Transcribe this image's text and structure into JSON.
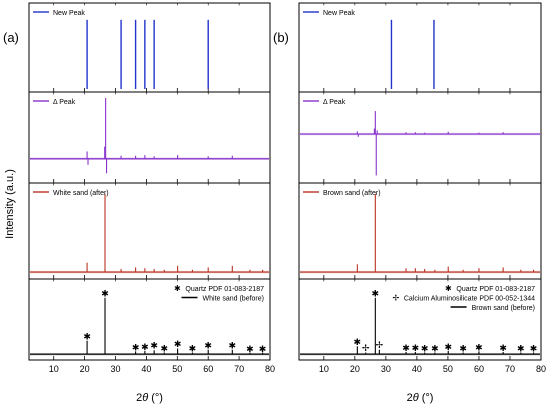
{
  "figure": {
    "ylabel": "Intensity (a.u.)"
  },
  "chart_data": [
    {
      "panel_label": "(a)",
      "type": "line",
      "xlabel_base": "2",
      "xlabel_theta": "θ",
      "xlabel_unit": " (°)",
      "xlim": [
        2,
        80
      ],
      "x_ticks": [
        10,
        20,
        30,
        40,
        50,
        60,
        70,
        80
      ],
      "grid": false,
      "legend_position": "top-left",
      "subplots": [
        {
          "legend": [
            {
              "label": "New Peak",
              "color": "#2233cc"
            }
          ],
          "series": [
            {
              "name": "New Peak",
              "color": "#2233cc",
              "style": "sticks",
              "x": [
                20.8,
                31.8,
                36.5,
                39.5,
                42.5,
                60.0
              ],
              "y": [
                1.0,
                1.0,
                1.0,
                1.0,
                1.0,
                1.0
              ]
            }
          ],
          "ylim": [
            0,
            1.2
          ],
          "baseline": 0
        },
        {
          "legend": [
            {
              "label": "Δ Peak",
              "color": "#8833cc"
            }
          ],
          "series": [
            {
              "name": "Δ Peak",
              "color": "#8833cc",
              "style": "spikes",
              "x": [
                20.8,
                21.1,
                26.5,
                26.8,
                27.1,
                31.8,
                36.5,
                39.5,
                42.5,
                50.1,
                60.0,
                67.8
              ],
              "y": [
                0.12,
                -0.1,
                0.2,
                1.0,
                -0.24,
                0.05,
                0.05,
                0.06,
                0.04,
                0.06,
                0.04,
                0.05
              ]
            }
          ],
          "ylim": [
            -0.35,
            1.05
          ],
          "baseline": 0
        },
        {
          "legend": [
            {
              "label": "White sand  (after)",
              "color": "#bb3322"
            }
          ],
          "series": [
            {
              "name": "White sand  (after)",
              "color": "#bb3322",
              "style": "spikes",
              "x": [
                20.8,
                26.6,
                31.8,
                36.5,
                39.5,
                42.5,
                45.8,
                50.1,
                54.9,
                60.0,
                67.8,
                73.5,
                77.6
              ],
              "y": [
                0.12,
                1.0,
                0.04,
                0.06,
                0.05,
                0.04,
                0.03,
                0.08,
                0.03,
                0.06,
                0.08,
                0.03,
                0.03
              ]
            }
          ],
          "ylim": [
            -0.05,
            1.1
          ],
          "baseline": 0
        },
        {
          "legend": [
            {
              "label": "Quartz PDF 01-083-2187",
              "marker": "✱"
            },
            {
              "label": "White sand  (before)",
              "color": "#000000"
            }
          ],
          "series": [
            {
              "name": "White sand  (before)",
              "color": "#000000",
              "style": "spikes",
              "x": [
                20.8,
                26.6,
                36.5,
                39.5,
                42.5,
                45.8,
                50.1,
                54.9,
                60.0,
                67.8,
                73.5,
                77.6
              ],
              "y": [
                0.24,
                1.0,
                0.05,
                0.06,
                0.07,
                0.03,
                0.1,
                0.03,
                0.08,
                0.08,
                0.03,
                0.03
              ]
            }
          ],
          "markers": [
            {
              "symbol": "✱",
              "x": [
                20.8,
                26.6,
                36.5,
                39.5,
                42.5,
                45.8,
                50.1,
                54.9,
                60.0,
                67.8,
                73.5,
                77.6
              ],
              "y": [
                0.31,
                1.08,
                0.12,
                0.13,
                0.15,
                0.1,
                0.18,
                0.1,
                0.15,
                0.15,
                0.09,
                0.09
              ]
            }
          ],
          "ylim": [
            -0.05,
            1.28
          ],
          "baseline": 0
        }
      ]
    },
    {
      "panel_label": "(b)",
      "type": "line",
      "xlabel_base": "2",
      "xlabel_theta": "θ",
      "xlabel_unit": " (°)",
      "xlim": [
        2,
        80
      ],
      "x_ticks": [
        10,
        20,
        30,
        40,
        50,
        60,
        70,
        80
      ],
      "grid": false,
      "legend_position": "top-left",
      "subplots": [
        {
          "legend": [
            {
              "label": "New Peak",
              "color": "#2233cc"
            }
          ],
          "series": [
            {
              "name": "New Peak",
              "color": "#2233cc",
              "style": "sticks",
              "x": [
                31.8,
                45.5
              ],
              "y": [
                1.0,
                1.0
              ]
            }
          ],
          "ylim": [
            0,
            1.2
          ],
          "baseline": 0
        },
        {
          "legend": [
            {
              "label": "Δ Peak",
              "color": "#8833cc"
            }
          ],
          "series": [
            {
              "name": "Δ Peak",
              "color": "#8833cc",
              "style": "spikes",
              "x": [
                20.8,
                21.1,
                26.3,
                26.6,
                26.9,
                27.2,
                36.5,
                39.5,
                42.5,
                50.1,
                60.0,
                67.8
              ],
              "y": [
                0.06,
                -0.06,
                0.12,
                0.5,
                -0.9,
                0.08,
                0.04,
                0.04,
                0.03,
                0.05,
                0.03,
                0.04
              ]
            }
          ],
          "ylim": [
            -1.0,
            0.85
          ],
          "baseline": 0
        },
        {
          "legend": [
            {
              "label": "Brown sand  (after)",
              "color": "#bb3322"
            }
          ],
          "series": [
            {
              "name": "Brown sand  (after)",
              "color": "#bb3322",
              "style": "spikes",
              "x": [
                20.8,
                26.6,
                36.5,
                39.5,
                42.5,
                45.8,
                50.1,
                54.9,
                60.0,
                67.8,
                73.5,
                77.6
              ],
              "y": [
                0.1,
                1.0,
                0.05,
                0.05,
                0.04,
                0.03,
                0.07,
                0.03,
                0.05,
                0.06,
                0.03,
                0.03
              ]
            }
          ],
          "ylim": [
            -0.05,
            1.1
          ],
          "baseline": 0
        },
        {
          "legend": [
            {
              "label": "Quartz PDF 01-083-2187",
              "marker": "✱"
            },
            {
              "label": "Calcium Aluminosilicate PDF 00-052-1344",
              "marker": "✢"
            },
            {
              "label": "Brown sand  (before)",
              "color": "#000000"
            }
          ],
          "series": [
            {
              "name": "Brown sand  (before)",
              "color": "#000000",
              "style": "spikes",
              "x": [
                20.8,
                23.5,
                26.6,
                27.9,
                36.5,
                39.5,
                42.5,
                45.8,
                50.1,
                54.9,
                60.0,
                67.8,
                73.5,
                77.6
              ],
              "y": [
                0.14,
                0.03,
                1.0,
                0.08,
                0.04,
                0.04,
                0.03,
                0.03,
                0.06,
                0.03,
                0.05,
                0.04,
                0.03,
                0.03
              ]
            }
          ],
          "markers": [
            {
              "symbol": "✱",
              "x": [
                20.8,
                26.6,
                36.5,
                39.5,
                42.5,
                45.8,
                50.1,
                54.9,
                60.0,
                67.8,
                73.5,
                77.6
              ],
              "y": [
                0.22,
                1.08,
                0.11,
                0.11,
                0.1,
                0.1,
                0.13,
                0.1,
                0.12,
                0.11,
                0.1,
                0.1
              ]
            },
            {
              "symbol": "✢",
              "x": [
                23.5,
                27.9
              ],
              "y": [
                0.11,
                0.16
              ]
            }
          ],
          "ylim": [
            -0.05,
            1.28
          ],
          "baseline": 0
        }
      ]
    }
  ]
}
